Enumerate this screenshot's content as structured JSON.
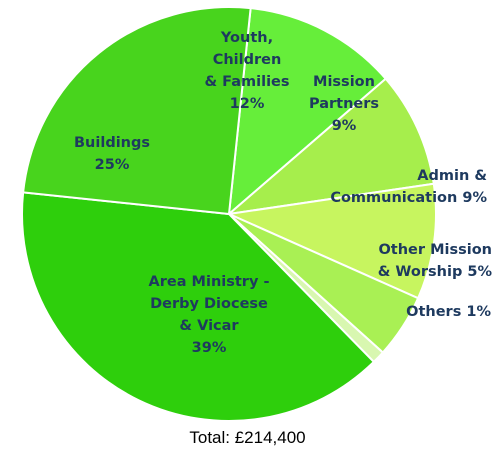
{
  "chart_data": {
    "type": "pie",
    "title": "",
    "slices": [
      {
        "label_lines": [
          "Youth,",
          "Children",
          "& Families"
        ],
        "percent_text": "12%",
        "value": 12,
        "color": "#66ee3a"
      },
      {
        "label_lines": [
          "Mission",
          "Partners"
        ],
        "percent_text": "9%",
        "value": 9,
        "color": "#a6ee4c"
      },
      {
        "label_lines": [
          "Admin &",
          "Communication"
        ],
        "percent_text": "9%",
        "value": 9,
        "color": "#c7f55f"
      },
      {
        "label_lines": [
          "Other Mission",
          "& Worship"
        ],
        "percent_text": "5%",
        "value": 5,
        "color": "#a9f054"
      },
      {
        "label_lines": [
          "Others"
        ],
        "percent_text": "1%",
        "value": 1,
        "color": "#d8f7b0"
      },
      {
        "label_lines": [
          "Area Ministry -",
          "Derby Diocese",
          "& Vicar"
        ],
        "percent_text": "39%",
        "value": 39,
        "color": "#2ecf0c"
      },
      {
        "label_lines": [
          "Buildings"
        ],
        "percent_text": "25%",
        "value": 25,
        "color": "#48d41d"
      }
    ]
  },
  "total_text": "Total: £214,400"
}
